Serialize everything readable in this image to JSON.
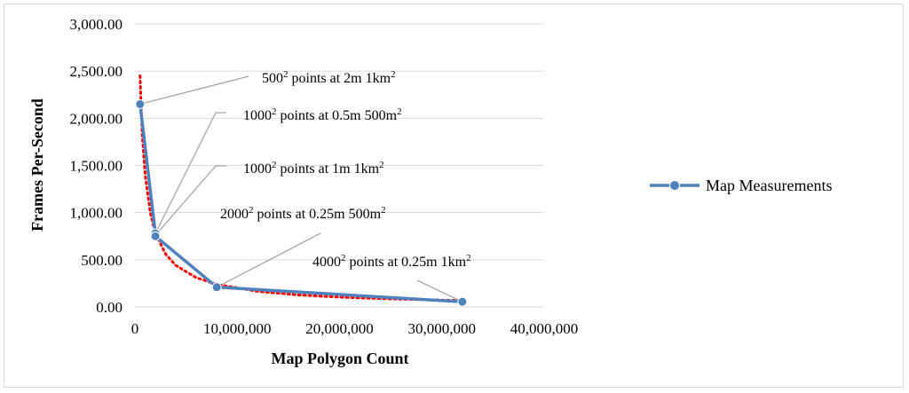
{
  "chart_data": {
    "type": "line",
    "xlabel": "Map Polygon Count",
    "ylabel": "Frames Per-Second",
    "xlim": [
      0,
      40000000
    ],
    "ylim": [
      0,
      3000
    ],
    "x_ticks": [
      0,
      10000000,
      20000000,
      30000000,
      40000000
    ],
    "x_tick_labels": [
      "0",
      "10,000,000",
      "20,000,000",
      "30,000,000",
      "40,000,000"
    ],
    "y_ticks": [
      0,
      500,
      1000,
      1500,
      2000,
      2500,
      3000
    ],
    "y_tick_labels": [
      "0.00",
      "500.00",
      "1,000.00",
      "1,500.00",
      "2,000.00",
      "2,500.00",
      "3,000.00"
    ],
    "grid": "horizontal",
    "legend_position": "right",
    "series": [
      {
        "name": "Map Measurements",
        "color": "#4f81bd",
        "marker": "circle",
        "x": [
          500000,
          2000000,
          2000000,
          8000000,
          32000000
        ],
        "y": [
          2150,
          780,
          750,
          210,
          55
        ]
      }
    ],
    "trendline": {
      "style": "dotted",
      "color": "#ff0000",
      "kind": "power",
      "x": [
        500000,
        700000,
        1000000,
        1500000,
        2000000,
        3000000,
        4000000,
        6000000,
        8000000,
        12000000,
        16000000,
        20000000,
        25000000,
        32000000
      ],
      "y": [
        2450,
        1850,
        1400,
        1000,
        780,
        560,
        440,
        310,
        240,
        165,
        127,
        104,
        85,
        67
      ]
    },
    "annotations": [
      {
        "base": "500",
        "sup": "2",
        "rest": " points at 2m 1km",
        "sup2": "2"
      },
      {
        "base": "1000",
        "sup": "2",
        "rest": " points at 0.5m 500m",
        "sup2": "2"
      },
      {
        "base": "1000",
        "sup": "2",
        "rest": " points at 1m 1km",
        "sup2": "2"
      },
      {
        "base": "2000",
        "sup": "2",
        "rest": " points at 0.25m 500m",
        "sup2": "2"
      },
      {
        "base": "4000",
        "sup": "2",
        "rest": " points at 0.25m 1km",
        "sup2": "2"
      }
    ]
  }
}
